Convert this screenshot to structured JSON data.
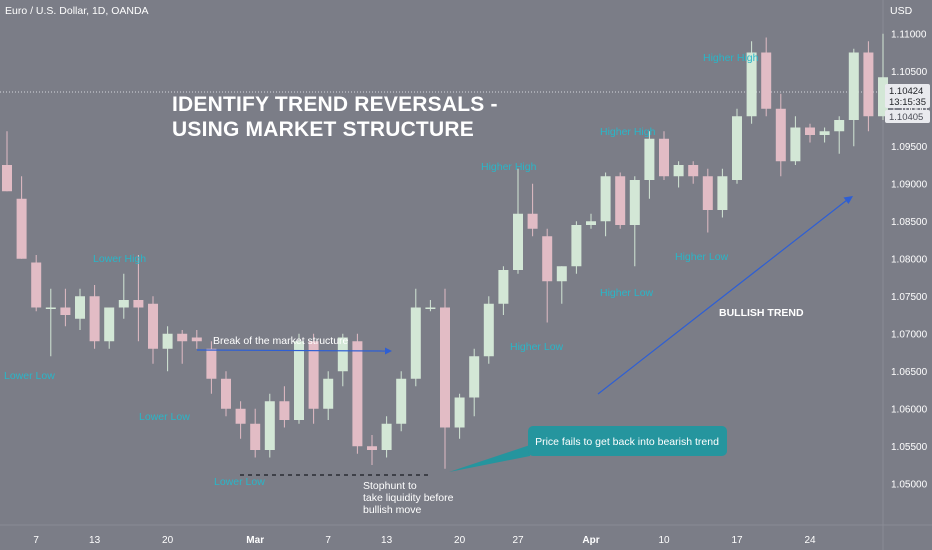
{
  "header": {
    "symbol": "Euro / U.S. Dollar, 1D, OANDA",
    "currency": "USD"
  },
  "title_lines": [
    "IDENTIFY TREND REVERSALS -",
    "USING MARKET STRUCTURE"
  ],
  "annotations": {
    "break_label": "Break of the market structure",
    "bullish_label": "BULLISH TREND",
    "callout": "Price fails to get back into bearish trend",
    "stophunt_lines": [
      "Stophunt to",
      "take liquidity before",
      "bullish move"
    ]
  },
  "structure_labels": {
    "lower_low_1": "Lower Low",
    "lower_high": "Lower High",
    "lower_low_2": "Lower Low",
    "lower_low_3": "Lower Low",
    "higher_high_1": "Higher High",
    "higher_low_1": "Higher Low",
    "higher_high_2": "Higher High",
    "higher_low_2": "Higher Low",
    "higher_high_3": "Higher High",
    "higher_low_3": "Higher Low"
  },
  "price_badge": {
    "price": "1.10424",
    "countdown": "13:15:35",
    "line_label": "1.10405"
  },
  "colors": {
    "background": "#7b7d87",
    "bull": "#d3e7d6",
    "bear": "#e2bcc5",
    "structure_text": "#29b6c8",
    "trend_arrow": "#2e5fd4",
    "callout_bg": "#25959e"
  },
  "chart_data": {
    "type": "candlestick",
    "title": "Euro / U.S. Dollar, 1D, OANDA",
    "ylabel": "USD",
    "ylim": [
      1.0445,
      1.1145
    ],
    "y_ticks": [
      "1.11000",
      "1.10500",
      "1.10000",
      "1.09500",
      "1.09000",
      "1.08500",
      "1.08000",
      "1.07500",
      "1.07000",
      "1.06500",
      "1.06000",
      "1.05500",
      "1.05000"
    ],
    "x_ticks": [
      "7",
      "13",
      "20",
      "Mar",
      "7",
      "13",
      "20",
      "27",
      "Apr",
      "10",
      "17",
      "24"
    ],
    "x_tick_index": [
      2,
      6,
      11,
      17,
      22,
      26,
      31,
      35,
      40,
      45,
      50,
      55
    ],
    "candles": [
      {
        "o": 1.0925,
        "h": 1.097,
        "l": 1.089,
        "c": 1.089
      },
      {
        "o": 1.088,
        "h": 1.091,
        "l": 1.08,
        "c": 1.08
      },
      {
        "o": 1.0795,
        "h": 1.0805,
        "l": 1.073,
        "c": 1.0735
      },
      {
        "o": 1.0735,
        "h": 1.076,
        "l": 1.067,
        "c": 1.0735
      },
      {
        "o": 1.0735,
        "h": 1.076,
        "l": 1.071,
        "c": 1.0725
      },
      {
        "o": 1.072,
        "h": 1.076,
        "l": 1.0705,
        "c": 1.075
      },
      {
        "o": 1.075,
        "h": 1.0765,
        "l": 1.068,
        "c": 1.069
      },
      {
        "o": 1.069,
        "h": 1.073,
        "l": 1.068,
        "c": 1.0735
      },
      {
        "o": 1.0735,
        "h": 1.078,
        "l": 1.072,
        "c": 1.0745
      },
      {
        "o": 1.0745,
        "h": 1.0805,
        "l": 1.069,
        "c": 1.0735
      },
      {
        "o": 1.074,
        "h": 1.075,
        "l": 1.066,
        "c": 1.068
      },
      {
        "o": 1.068,
        "h": 1.071,
        "l": 1.065,
        "c": 1.07
      },
      {
        "o": 1.07,
        "h": 1.0705,
        "l": 1.066,
        "c": 1.069
      },
      {
        "o": 1.0695,
        "h": 1.0705,
        "l": 1.068,
        "c": 1.069
      },
      {
        "o": 1.068,
        "h": 1.069,
        "l": 1.062,
        "c": 1.064
      },
      {
        "o": 1.064,
        "h": 1.065,
        "l": 1.059,
        "c": 1.06
      },
      {
        "o": 1.06,
        "h": 1.061,
        "l": 1.056,
        "c": 1.058
      },
      {
        "o": 1.058,
        "h": 1.06,
        "l": 1.0535,
        "c": 1.0545
      },
      {
        "o": 1.0545,
        "h": 1.062,
        "l": 1.0535,
        "c": 1.061
      },
      {
        "o": 1.061,
        "h": 1.063,
        "l": 1.0575,
        "c": 1.0585
      },
      {
        "o": 1.0585,
        "h": 1.07,
        "l": 1.058,
        "c": 1.069
      },
      {
        "o": 1.069,
        "h": 1.07,
        "l": 1.058,
        "c": 1.06
      },
      {
        "o": 1.06,
        "h": 1.065,
        "l": 1.0585,
        "c": 1.064
      },
      {
        "o": 1.065,
        "h": 1.07,
        "l": 1.063,
        "c": 1.0695
      },
      {
        "o": 1.069,
        "h": 1.07,
        "l": 1.054,
        "c": 1.055
      },
      {
        "o": 1.055,
        "h": 1.0565,
        "l": 1.0525,
        "c": 1.0545
      },
      {
        "o": 1.0545,
        "h": 1.059,
        "l": 1.0535,
        "c": 1.058
      },
      {
        "o": 1.058,
        "h": 1.065,
        "l": 1.057,
        "c": 1.064
      },
      {
        "o": 1.064,
        "h": 1.076,
        "l": 1.063,
        "c": 1.0735
      },
      {
        "o": 1.0735,
        "h": 1.0745,
        "l": 1.073,
        "c": 1.0735
      },
      {
        "o": 1.0735,
        "h": 1.076,
        "l": 1.052,
        "c": 1.0575
      },
      {
        "o": 1.0575,
        "h": 1.062,
        "l": 1.056,
        "c": 1.0615
      },
      {
        "o": 1.0615,
        "h": 1.068,
        "l": 1.059,
        "c": 1.067
      },
      {
        "o": 1.067,
        "h": 1.075,
        "l": 1.066,
        "c": 1.074
      },
      {
        "o": 1.074,
        "h": 1.079,
        "l": 1.0725,
        "c": 1.0785
      },
      {
        "o": 1.0785,
        "h": 1.092,
        "l": 1.078,
        "c": 1.086
      },
      {
        "o": 1.086,
        "h": 1.09,
        "l": 1.083,
        "c": 1.084
      },
      {
        "o": 1.083,
        "h": 1.084,
        "l": 1.0715,
        "c": 1.077
      },
      {
        "o": 1.077,
        "h": 1.079,
        "l": 1.074,
        "c": 1.079
      },
      {
        "o": 1.079,
        "h": 1.085,
        "l": 1.078,
        "c": 1.0845
      },
      {
        "o": 1.0845,
        "h": 1.086,
        "l": 1.084,
        "c": 1.085
      },
      {
        "o": 1.085,
        "h": 1.0915,
        "l": 1.083,
        "c": 1.091
      },
      {
        "o": 1.091,
        "h": 1.0915,
        "l": 1.084,
        "c": 1.0845
      },
      {
        "o": 1.0845,
        "h": 1.091,
        "l": 1.079,
        "c": 1.0905
      },
      {
        "o": 1.0905,
        "h": 1.097,
        "l": 1.088,
        "c": 1.096
      },
      {
        "o": 1.096,
        "h": 1.097,
        "l": 1.0905,
        "c": 1.091
      },
      {
        "o": 1.091,
        "h": 1.093,
        "l": 1.0895,
        "c": 1.0925
      },
      {
        "o": 1.0925,
        "h": 1.093,
        "l": 1.09,
        "c": 1.091
      },
      {
        "o": 1.091,
        "h": 1.092,
        "l": 1.0835,
        "c": 1.0865
      },
      {
        "o": 1.0865,
        "h": 1.092,
        "l": 1.0855,
        "c": 1.091
      },
      {
        "o": 1.0905,
        "h": 1.1,
        "l": 1.09,
        "c": 1.099
      },
      {
        "o": 1.099,
        "h": 1.109,
        "l": 1.098,
        "c": 1.1075
      },
      {
        "o": 1.1075,
        "h": 1.1095,
        "l": 1.099,
        "c": 1.1
      },
      {
        "o": 1.1,
        "h": 1.102,
        "l": 1.091,
        "c": 1.093
      },
      {
        "o": 1.093,
        "h": 1.099,
        "l": 1.0925,
        "c": 1.0975
      },
      {
        "o": 1.0975,
        "h": 1.098,
        "l": 1.0955,
        "c": 1.0965
      },
      {
        "o": 1.0965,
        "h": 1.0975,
        "l": 1.0955,
        "c": 1.097
      },
      {
        "o": 1.097,
        "h": 1.099,
        "l": 1.094,
        "c": 1.0985
      },
      {
        "o": 1.0985,
        "h": 1.108,
        "l": 1.095,
        "c": 1.1075
      },
      {
        "o": 1.1075,
        "h": 1.109,
        "l": 1.097,
        "c": 1.099
      },
      {
        "o": 1.099,
        "h": 1.11,
        "l": 1.0985,
        "c": 1.1042
      }
    ]
  }
}
